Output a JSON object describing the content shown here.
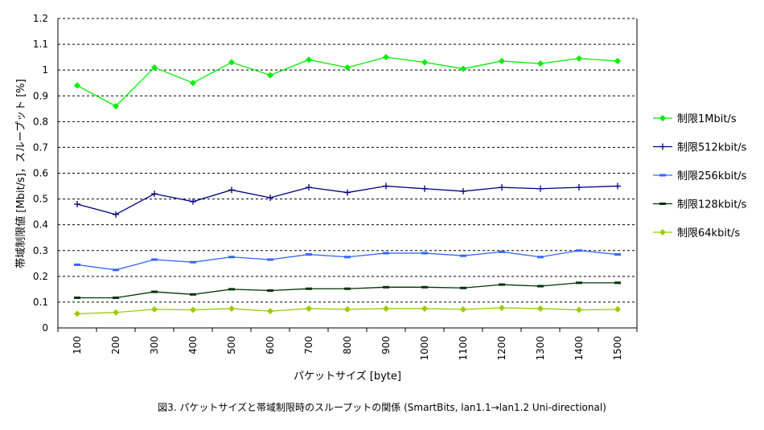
{
  "chart_data": {
    "type": "line",
    "title": "",
    "xlabel": "パケットサイズ [byte]",
    "ylabel": "帯域制限値 [Mbit/s]，スループット [%]",
    "ylim": [
      0,
      1.2
    ],
    "yticks": [
      "0",
      "0.1",
      "0.2",
      "0.3",
      "0.4",
      "0.5",
      "0.6",
      "0.7",
      "0.8",
      "0.9",
      "1",
      "1.1",
      "1.2"
    ],
    "categories": [
      "100",
      "200",
      "300",
      "400",
      "500",
      "600",
      "700",
      "800",
      "900",
      "1000",
      "1100",
      "1200",
      "1300",
      "1400",
      "1500"
    ],
    "grid": "horizontal-dashed",
    "legend": "right",
    "series": [
      {
        "name": "制限1Mbit/s",
        "color": "#00ee00",
        "marker": "diamond",
        "values": [
          0.94,
          0.86,
          1.01,
          0.95,
          1.03,
          0.98,
          1.04,
          1.01,
          1.05,
          1.03,
          1.005,
          1.035,
          1.025,
          1.045,
          1.035
        ]
      },
      {
        "name": "制限512kbit/s",
        "color": "#000080",
        "marker": "plus",
        "values": [
          0.48,
          0.44,
          0.52,
          0.49,
          0.535,
          0.505,
          0.545,
          0.525,
          0.55,
          0.54,
          0.53,
          0.545,
          0.54,
          0.545,
          0.55
        ]
      },
      {
        "name": "制限256kbit/s",
        "color": "#3366ff",
        "marker": "dash",
        "values": [
          0.245,
          0.225,
          0.265,
          0.255,
          0.275,
          0.265,
          0.285,
          0.275,
          0.29,
          0.29,
          0.28,
          0.295,
          0.275,
          0.3,
          0.285
        ]
      },
      {
        "name": "制限128kbit/s",
        "color": "#003300",
        "marker": "dash",
        "values": [
          0.117,
          0.117,
          0.14,
          0.13,
          0.15,
          0.145,
          0.152,
          0.152,
          0.158,
          0.158,
          0.155,
          0.168,
          0.162,
          0.175,
          0.175
        ]
      },
      {
        "name": "制限64kbit/s",
        "color": "#99cc00",
        "marker": "diamond",
        "values": [
          0.055,
          0.06,
          0.072,
          0.07,
          0.075,
          0.065,
          0.075,
          0.072,
          0.075,
          0.075,
          0.072,
          0.078,
          0.075,
          0.07,
          0.072
        ]
      }
    ]
  },
  "caption": "図3. パケットサイズと帯域制限時のスループットの関係 (SmartBits, lan1.1→lan1.2 Uni-directional)"
}
